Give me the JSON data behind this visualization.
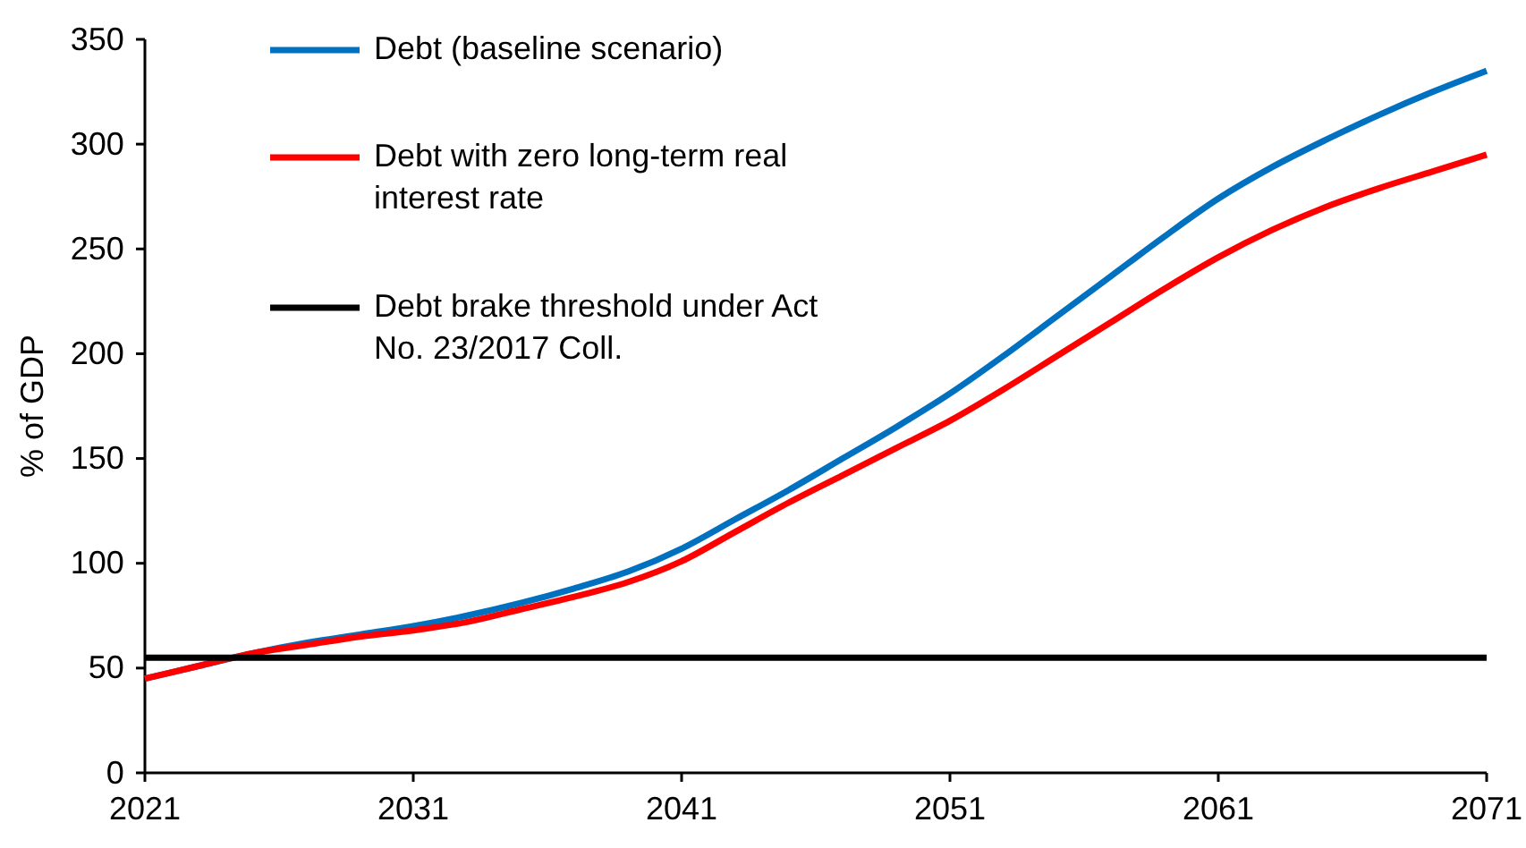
{
  "chart_data": {
    "type": "line",
    "ylabel": "% of GDP",
    "x": [
      2021,
      2023,
      2025,
      2027,
      2029,
      2031,
      2033,
      2035,
      2037,
      2039,
      2041,
      2043,
      2045,
      2047,
      2049,
      2051,
      2053,
      2055,
      2057,
      2059,
      2061,
      2063,
      2065,
      2067,
      2069,
      2071
    ],
    "series": [
      {
        "name": "Debt (baseline scenario)",
        "color": "#0070c0",
        "values": [
          45,
          51,
          57,
          62,
          66,
          70,
          75,
          81,
          88,
          96,
          107,
          121,
          135,
          150,
          165,
          181,
          199,
          218,
          237,
          256,
          274,
          289,
          302,
          314,
          325,
          335
        ]
      },
      {
        "name": "Debt with zero long-term real interest rate",
        "color": "#ff0000",
        "values": [
          45,
          51,
          57,
          61,
          65,
          68,
          72,
          78,
          84,
          91,
          101,
          115,
          129,
          142,
          155,
          168,
          183,
          199,
          215,
          231,
          246,
          259,
          270,
          279,
          287,
          295
        ]
      },
      {
        "name": "Debt brake threshold under Act No. 23/2017 Coll.",
        "color": "#000000",
        "x": [
          2021,
          2071
        ],
        "values": [
          55,
          55
        ]
      }
    ],
    "xlim": [
      2021,
      2071
    ],
    "xticks": [
      2021,
      2031,
      2041,
      2051,
      2061,
      2071
    ],
    "ylim": [
      0,
      350
    ],
    "yticks": [
      0,
      50,
      100,
      150,
      200,
      250,
      300,
      350
    ],
    "grid": false,
    "legend": "top left",
    "line_style": "solid",
    "marker": "none"
  }
}
